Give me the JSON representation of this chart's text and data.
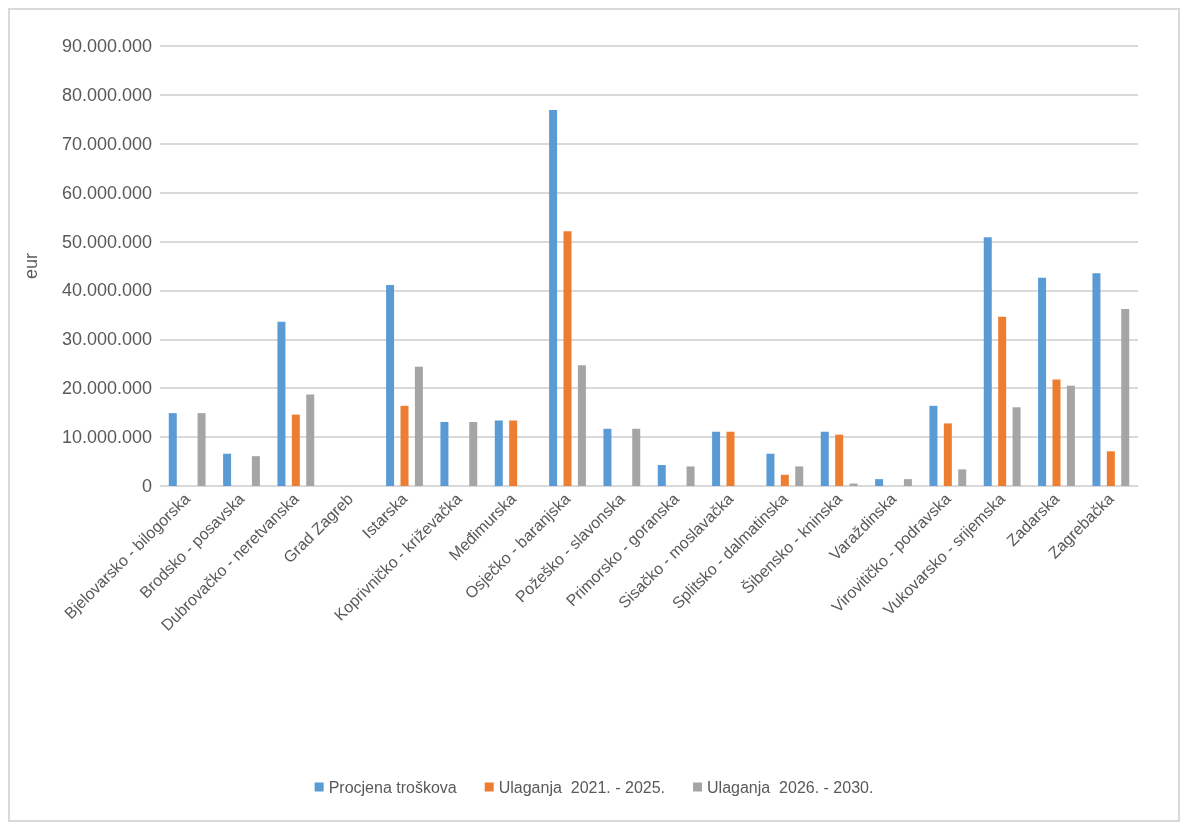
{
  "chart_data": {
    "type": "bar",
    "ylabel": "eur",
    "categories": [
      "Bjelovarsko - bilogorska",
      "Brodsko - posavska",
      "Dubrovačko - neretvanska",
      "Grad Zagreb",
      "Istarska",
      "Koprivničko - križevačka",
      "Međimurska",
      "Osječko - baranjska",
      "Požeško - slavonska",
      "Primorsko - goranska",
      "Sisačko - moslavačka",
      "Splitsko - dalmatinska",
      "Šibensko - kninska",
      "Varaždinska",
      "Virovitičko - podravska",
      "Vukovarsko - srijemska",
      "Zadarska",
      "Zagrebačka"
    ],
    "series": [
      {
        "name": "Procjena troškova",
        "color": "#5b9bd5",
        "values": [
          14900000,
          6600000,
          33600000,
          null,
          41100000,
          13100000,
          13400000,
          76900000,
          11700000,
          4300000,
          11100000,
          6600000,
          11100000,
          1400000,
          16400000,
          50900000,
          42600000,
          43500000
        ]
      },
      {
        "name": "Ulaganja  2021. - 2025.",
        "color": "#ed7d31",
        "values": [
          null,
          null,
          14600000,
          null,
          16400000,
          null,
          13400000,
          52100000,
          null,
          null,
          11100000,
          2300000,
          10500000,
          null,
          12800000,
          34600000,
          21800000,
          7100000
        ]
      },
      {
        "name": "Ulaganja  2026. - 2030.",
        "color": "#a5a5a5",
        "values": [
          14900000,
          6100000,
          18700000,
          null,
          24400000,
          13100000,
          null,
          24700000,
          11700000,
          4000000,
          null,
          4000000,
          500000,
          1400000,
          3400000,
          16100000,
          20500000,
          36200000
        ]
      }
    ],
    "ylim": [
      0,
      90000000
    ],
    "yticks": [
      {
        "value": 0,
        "label": "0"
      },
      {
        "value": 10000000,
        "label": "10.000.000"
      },
      {
        "value": 20000000,
        "label": "20.000.000"
      },
      {
        "value": 30000000,
        "label": "30.000.000"
      },
      {
        "value": 40000000,
        "label": "40.000.000"
      },
      {
        "value": 50000000,
        "label": "50.000.000"
      },
      {
        "value": 60000000,
        "label": "60.000.000"
      },
      {
        "value": 70000000,
        "label": "70.000.000"
      },
      {
        "value": 80000000,
        "label": "80.000.000"
      },
      {
        "value": 90000000,
        "label": "90.000.000"
      }
    ],
    "grid": "y",
    "legend": "bottom"
  }
}
